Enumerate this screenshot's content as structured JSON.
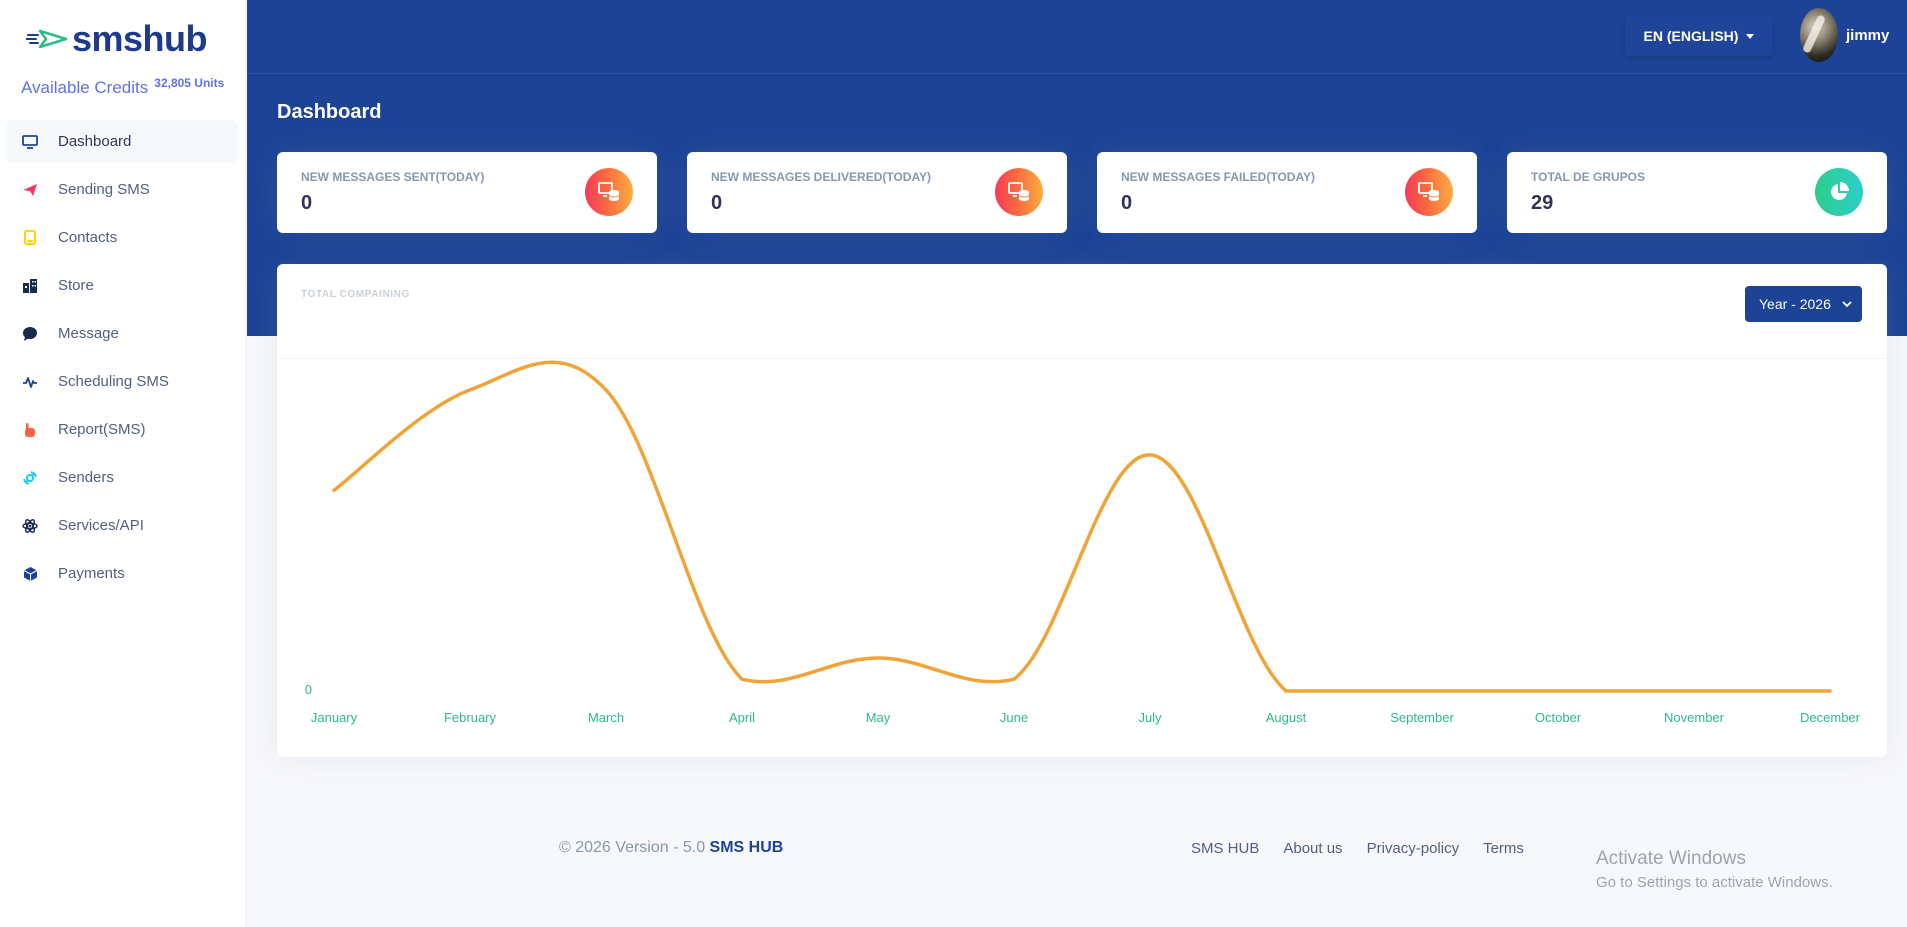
{
  "sidebar": {
    "brand": "smshub",
    "credits_label": "Available Credits",
    "credits_value": "32,805 Units",
    "items": [
      {
        "label": "Dashboard",
        "icon": "monitor-icon",
        "active": true
      },
      {
        "label": "Sending SMS",
        "icon": "paper-plane-icon"
      },
      {
        "label": "Contacts",
        "icon": "contact-card-icon"
      },
      {
        "label": "Store",
        "icon": "building-icon"
      },
      {
        "label": "Message",
        "icon": "chat-bubble-icon"
      },
      {
        "label": "Scheduling SMS",
        "icon": "activity-icon"
      },
      {
        "label": "Report(SMS)",
        "icon": "hand-icon"
      },
      {
        "label": "Senders",
        "icon": "satellite-icon"
      },
      {
        "label": "Services/API",
        "icon": "atom-icon"
      },
      {
        "label": "Payments",
        "icon": "box-icon"
      }
    ]
  },
  "header": {
    "language": "EN (ENGLISH)",
    "username": "jimmy",
    "page_title": "Dashboard"
  },
  "stats": [
    {
      "title": "NEW MESSAGES SENT(TODAY)",
      "value": "0",
      "icon": "database-icon"
    },
    {
      "title": "NEW MESSAGES DELIVERED(TODAY)",
      "value": "0",
      "icon": "database-icon"
    },
    {
      "title": "NEW MESSAGES FAILED(TODAY)",
      "value": "0",
      "icon": "database-icon"
    },
    {
      "title": "TOTAL DE GRUPOS",
      "value": "29",
      "icon": "pie-chart-icon"
    }
  ],
  "chart_card": {
    "title": "TOTAL COMPAINING",
    "year_select": "Year - 2026"
  },
  "chart_data": {
    "type": "line",
    "categories": [
      "January",
      "February",
      "March",
      "April",
      "May",
      "June",
      "July",
      "August",
      "September",
      "October",
      "November",
      "December"
    ],
    "values": [
      170,
      255,
      255,
      10,
      28,
      10,
      200,
      0,
      0,
      0,
      0,
      0
    ],
    "ytick_label": "0",
    "ylim": [
      0,
      260
    ],
    "line_color": "#f0a437",
    "tick_color": "#2dbb86",
    "grid": false
  },
  "footer": {
    "copyright": "© 2026 Version - 5.0 ",
    "brand": "SMS HUB",
    "links": [
      "SMS HUB",
      "About us",
      "Privacy-policy",
      "Terms"
    ]
  },
  "watermark": {
    "line1": "Activate Windows",
    "line2": "Go to Settings to activate Windows."
  }
}
